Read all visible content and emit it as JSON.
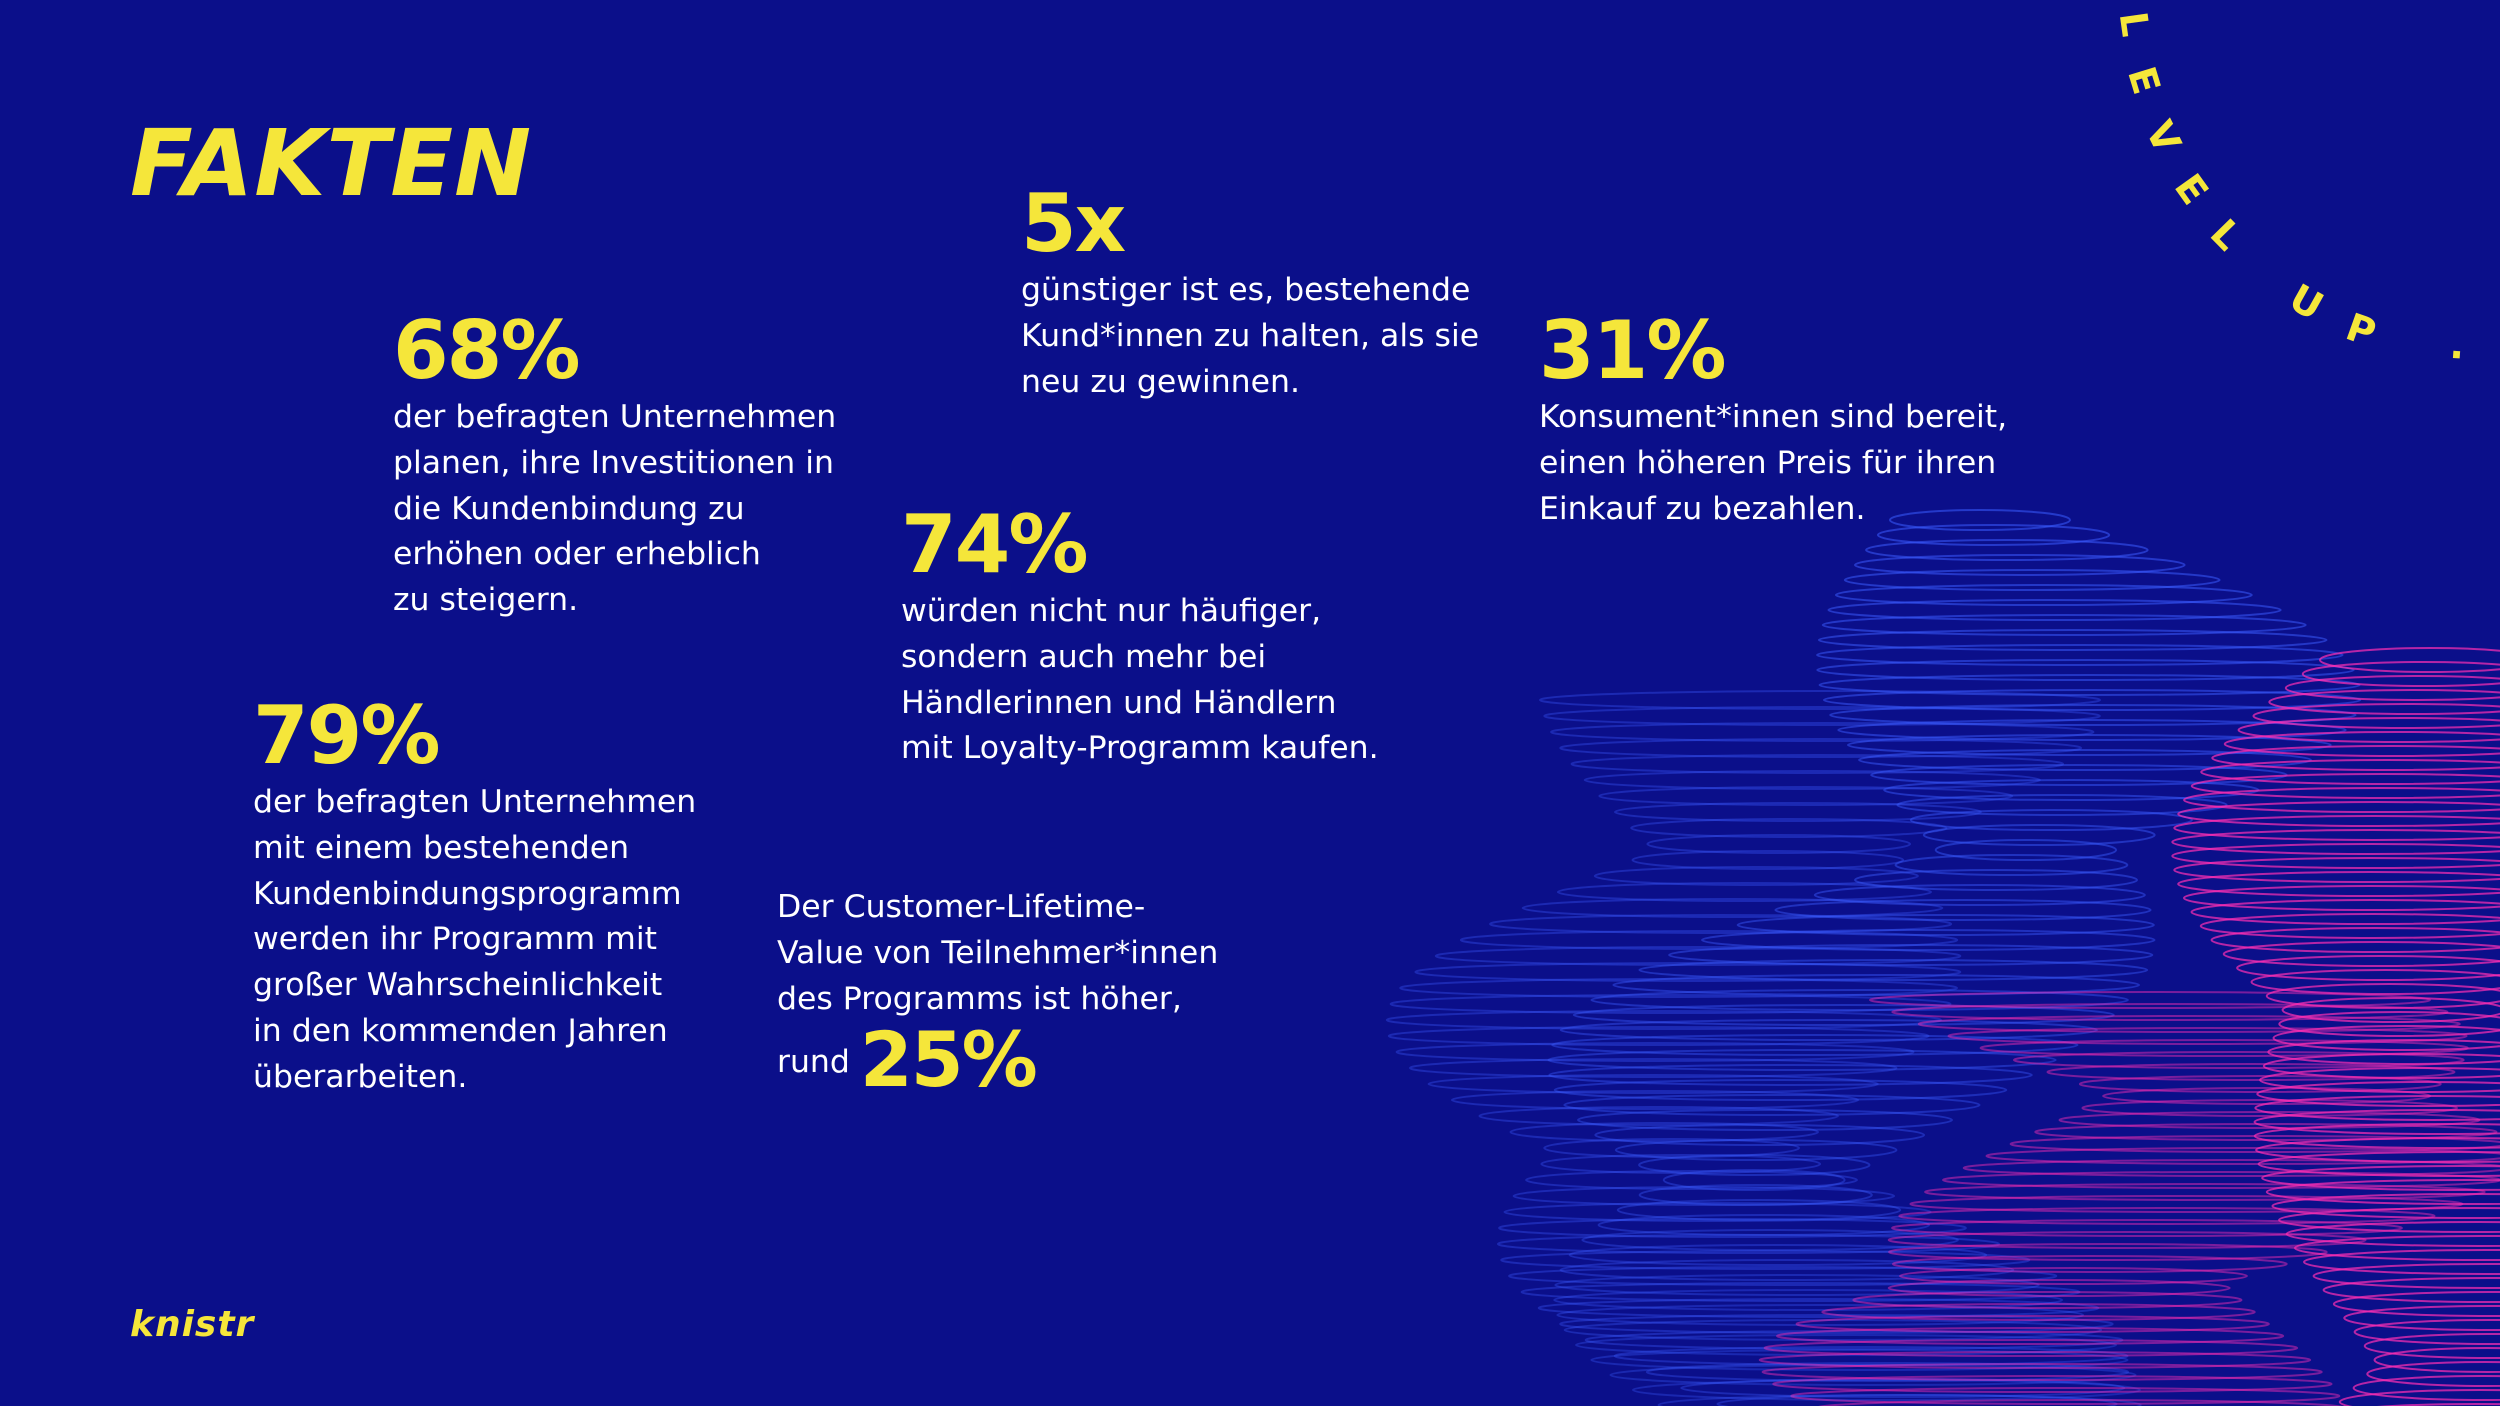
{
  "title": "FAKTEN",
  "facts": {
    "f68": {
      "value": "68%",
      "text": "der befragten Unternehmen\nplanen, ihre Investitionen in\ndie Kundenbindung zu\nerhöhen oder erheblich\nzu steigern."
    },
    "f5x": {
      "value": "5x",
      "text": "günstiger ist es, bestehende\nKund*innen zu halten, als sie\nneu zu gewinnen."
    },
    "f31": {
      "value": "31%",
      "text": "Konsument*innen sind bereit,\neinen höheren Preis für ihren\nEinkauf zu bezahlen."
    },
    "f74": {
      "value": "74%",
      "text": "würden nicht nur häufiger,\nsondern auch mehr bei\nHändlerinnen und Händlern\nmit Loyalty-Programm kaufen."
    },
    "f79": {
      "value": "79%",
      "text": "der befragten Unternehmen\nmit einem bestehenden\nKundenbindungsprogramm\nwerden ihr Programm mit\ngroßer Wahrscheinlichkeit\nin den kommenden Jahren\nüberarbeiten."
    },
    "f25": {
      "text": "Der Customer-Lifetime-\nValue von Teilnehmer*innen\ndes Programms ist höher,",
      "prefix": "rund",
      "value": "25%"
    }
  },
  "ring_text": "LEVEL UP · LEVEL UP",
  "logo": "knistr",
  "colors": {
    "background": "#0b0f8a",
    "accent": "#f5e63a",
    "text": "#ffffff",
    "wave_blue": "#3b5cff",
    "wave_pink": "#ff2fb3"
  }
}
